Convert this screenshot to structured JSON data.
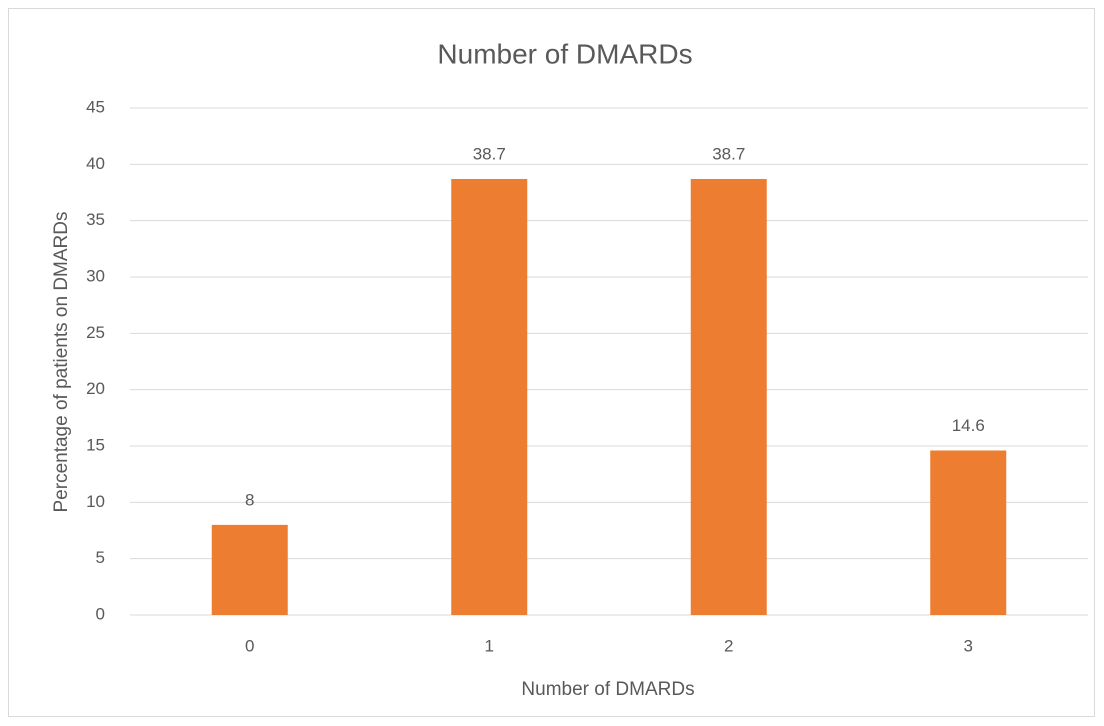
{
  "chart_data": {
    "type": "bar",
    "title": "Number of DMARDs",
    "x_label": "Number of DMARDs",
    "y_label": "Percentage of patients on DMARDs",
    "categories": [
      "0",
      "1",
      "2",
      "3"
    ],
    "values": [
      8,
      38.7,
      38.7,
      14.6
    ],
    "color": "#ed7d31",
    "ylim": [
      0,
      45
    ],
    "yticks": [
      0,
      5,
      10,
      15,
      20,
      25,
      30,
      35,
      40,
      45
    ],
    "grid": true
  }
}
